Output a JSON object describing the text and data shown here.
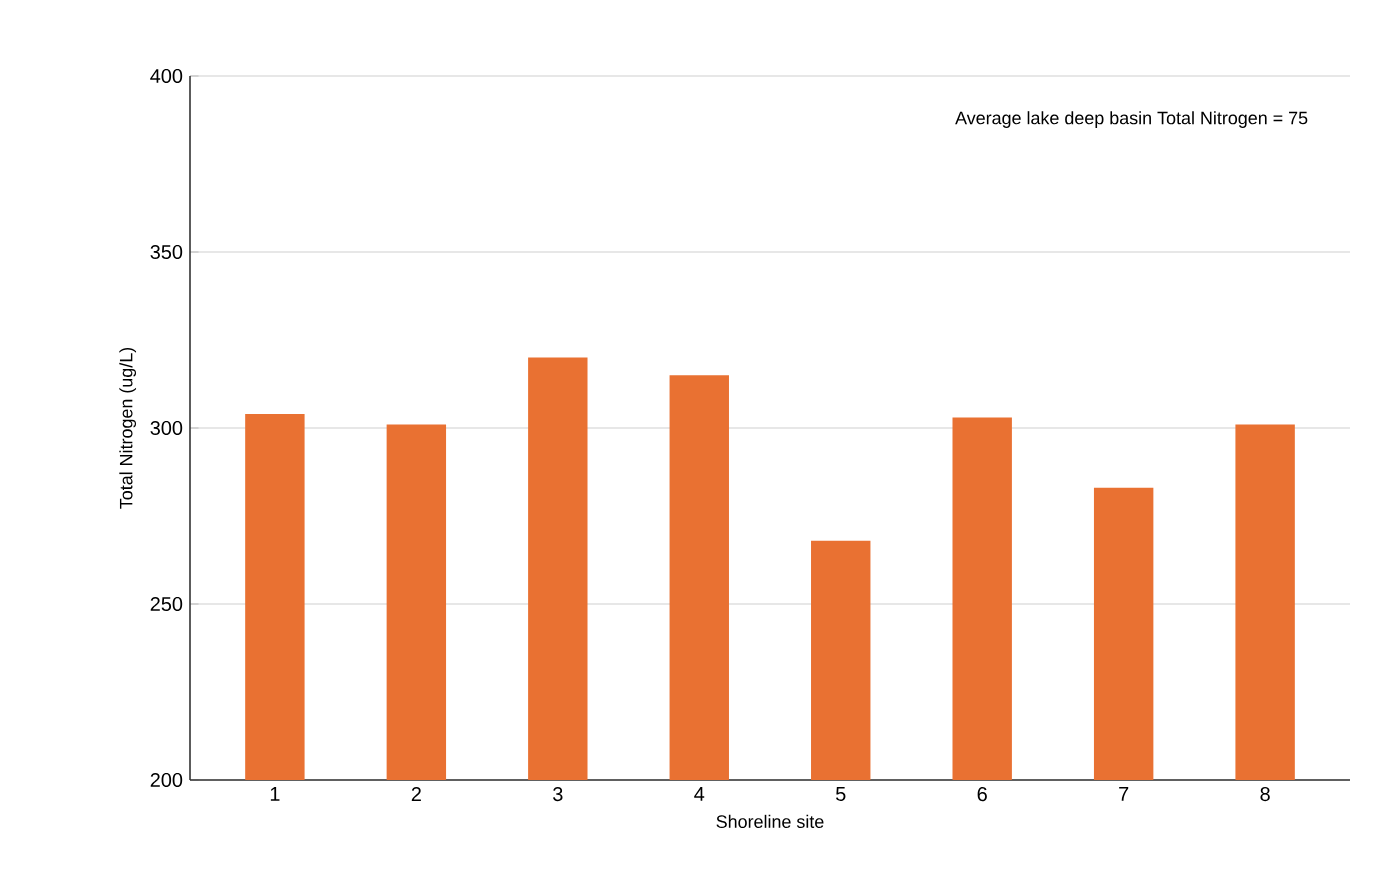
{
  "chart_data": {
    "type": "bar",
    "xlabel": "Shoreline site",
    "ylabel": "Total Nitrogen (ug/L)",
    "annotations": [
      "Average lake deep basin Total Nitrogen = 75"
    ],
    "categories": [
      "1",
      "2",
      "3",
      "4",
      "5",
      "6",
      "7",
      "8"
    ],
    "values": [
      304,
      301,
      320,
      315,
      268,
      303,
      283,
      301
    ],
    "color": "#e97132",
    "ylim": [
      200,
      400
    ],
    "yticks": [
      200,
      250,
      300,
      350,
      400
    ],
    "grid": "y"
  }
}
